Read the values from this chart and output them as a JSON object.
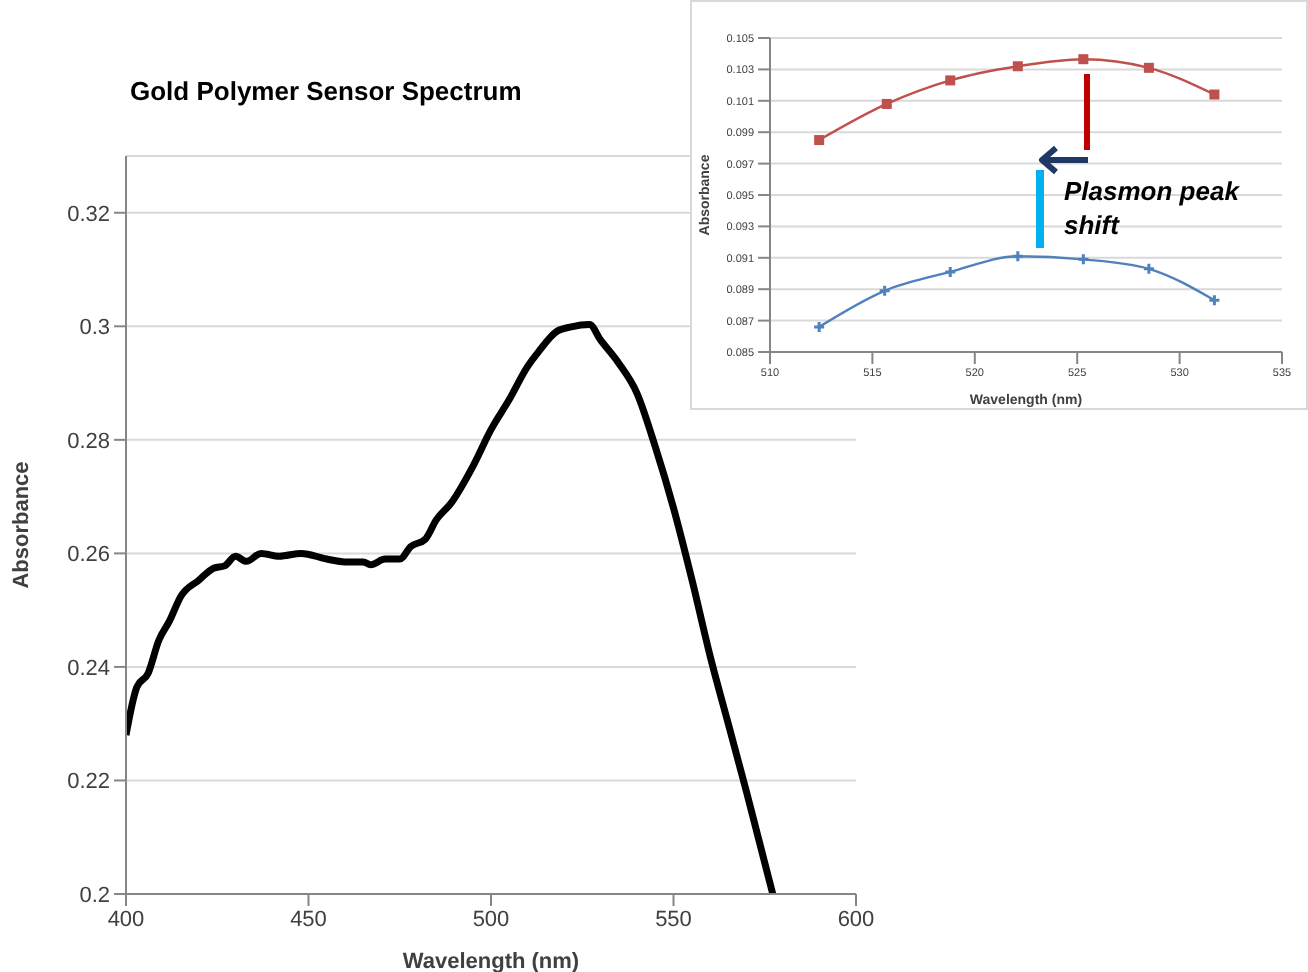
{
  "chart_data": [
    {
      "type": "line",
      "title": "Gold Polymer Sensor Spectrum",
      "xlabel": "Wavelength (nm)",
      "ylabel": "Absorbance",
      "xlim": [
        400,
        600
      ],
      "xticks": [
        400,
        450,
        500,
        550,
        600
      ],
      "ylim": [
        0.2,
        0.33
      ],
      "yticks": [
        0.2,
        0.22,
        0.24,
        0.26,
        0.28,
        0.3,
        0.32
      ],
      "grid": "y",
      "x": [
        400,
        403,
        406,
        409,
        412,
        415,
        420,
        424,
        427,
        430,
        433,
        437,
        442,
        448,
        455,
        460,
        465,
        467,
        471,
        475,
        478,
        482,
        485,
        489,
        495,
        500,
        505,
        510,
        513,
        518,
        522,
        527,
        530,
        535,
        540,
        545,
        550,
        555,
        560,
        565,
        570,
        577.2
      ],
      "series": [
        {
          "color": "#000000",
          "values": [
            0.228,
            0.2365,
            0.2388,
            0.2447,
            0.2482,
            0.2524,
            0.2553,
            0.2574,
            0.2578,
            0.2595,
            0.2586,
            0.26,
            0.2595,
            0.26,
            0.259,
            0.2585,
            0.2585,
            0.258,
            0.259,
            0.259,
            0.2612,
            0.2625,
            0.2659,
            0.2688,
            0.2753,
            0.2818,
            0.2871,
            0.2929,
            0.2955,
            0.2991,
            0.2999,
            0.3003,
            0.2976,
            0.2935,
            0.2882,
            0.2788,
            0.268,
            0.2555,
            0.242,
            0.23,
            0.218,
            0.2
          ]
        }
      ]
    },
    {
      "type": "line",
      "xlabel": "Wavelength (nm)",
      "ylabel": "Absorbance",
      "xlim": [
        510,
        535
      ],
      "xticks": [
        510,
        515,
        520,
        525,
        530,
        535
      ],
      "ylim": [
        0.085,
        0.105
      ],
      "yticks": [
        0.085,
        0.087,
        0.089,
        0.091,
        0.093,
        0.095,
        0.097,
        0.099,
        0.101,
        0.103,
        0.105
      ],
      "grid": "y",
      "annotations": [
        "Plasmon peak shift"
      ],
      "series": [
        {
          "color": "#c0504d",
          "marker": "square",
          "x": [
            512.4,
            515.7,
            518.8,
            522.1,
            525.3,
            528.5,
            531.7
          ],
          "values": [
            0.0985,
            0.1008,
            0.1023,
            0.1032,
            0.10365,
            0.1031,
            0.1014
          ]
        },
        {
          "color": "#4f81bd",
          "marker": "cross",
          "x": [
            512.4,
            515.6,
            518.8,
            522.1,
            525.3,
            528.5,
            531.7
          ],
          "values": [
            0.0866,
            0.0889,
            0.0901,
            0.0911,
            0.0909,
            0.0903,
            0.0883
          ]
        }
      ]
    }
  ]
}
